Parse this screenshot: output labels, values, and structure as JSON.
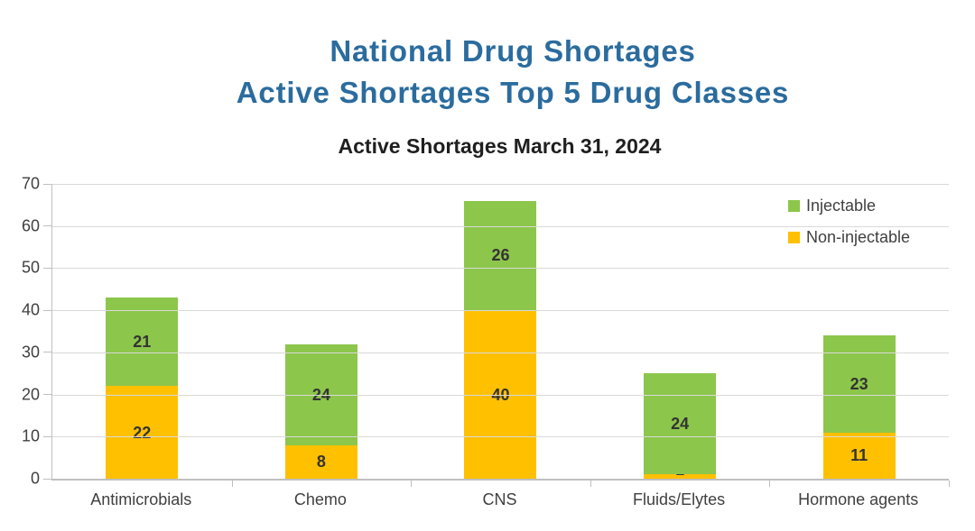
{
  "header": {
    "title_line1": "National Drug Shortages",
    "title_line2": "Active Shortages Top 5 Drug Classes",
    "title_color": "#2b6c9e"
  },
  "chart_data": {
    "type": "bar",
    "stacked": true,
    "title": "Active Shortages March 31, 2024",
    "categories": [
      "Antimicrobials",
      "Chemo",
      "CNS",
      "Fluids/Elytes",
      "Hormone agents"
    ],
    "series": [
      {
        "name": "Non-injectable",
        "color": "#ffc000",
        "values": [
          22,
          8,
          40,
          1,
          11
        ]
      },
      {
        "name": "Injectable",
        "color": "#8cc64b",
        "values": [
          21,
          24,
          26,
          24,
          23
        ]
      }
    ],
    "totals": [
      43,
      32,
      66,
      25,
      34
    ],
    "ylim": [
      0,
      70
    ],
    "yticks": [
      0,
      10,
      20,
      30,
      40,
      50,
      60,
      70
    ],
    "xlabel": "",
    "ylabel": "",
    "grid": "horizontal",
    "legend_position": "top-right",
    "legend_order": [
      "Injectable",
      "Non-injectable"
    ],
    "colors": {
      "gridline": "#d9d9d9",
      "axis": "#bfbfbf",
      "tick_label": "#404040",
      "data_label": "#333333"
    }
  }
}
